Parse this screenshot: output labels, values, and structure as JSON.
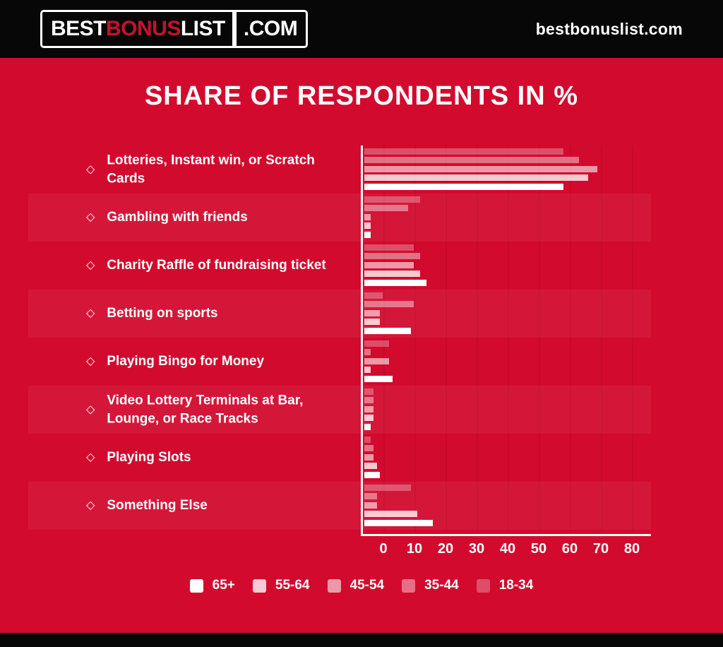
{
  "header": {
    "logo": {
      "best": "BEST",
      "bonus": "BONUS",
      "list": "LIST",
      "dotcom": ".COM"
    },
    "site": "bestbonuslist.com"
  },
  "title": "SHARE OF RESPONDENTS IN %",
  "icons": {
    "bullet": "◇"
  },
  "colors": {
    "background_red": "#d20a2e",
    "header_black": "#070707",
    "logo_red": "#c4122e",
    "text_white": "#ffffff",
    "row_band_overlay": "rgba(255,255,255,0.055)"
  },
  "chart_data": {
    "type": "bar",
    "orientation": "horizontal",
    "title": "SHARE OF RESPONDENTS IN %",
    "unit": "%",
    "categories": [
      "Lotteries, Instant win, or Scratch Cards",
      "Gambling with friends",
      "Charity Raffle of fundraising ticket",
      "Betting on sports",
      "Playing Bingo for Money",
      "Video Lottery Terminals at Bar,\nLounge, or Race Tracks",
      "Playing Slots",
      "Something Else"
    ],
    "series": [
      {
        "name": "65+",
        "color": "rgba(255,255,255,1)",
        "values": [
          64,
          2,
          20,
          15,
          9,
          2,
          5,
          22
        ]
      },
      {
        "name": "55-64",
        "color": "rgba(255,255,255,0.78)",
        "values": [
          72,
          2,
          18,
          5,
          2,
          3,
          4,
          17
        ]
      },
      {
        "name": "45-54",
        "color": "rgba(255,255,255,0.58)",
        "values": [
          75,
          2,
          16,
          5,
          8,
          3,
          3,
          4
        ]
      },
      {
        "name": "35-44",
        "color": "rgba(255,255,255,0.42)",
        "values": [
          69,
          14,
          18,
          16,
          2,
          3,
          3,
          4
        ]
      },
      {
        "name": "18-34",
        "color": "rgba(255,255,255,0.28)",
        "values": [
          64,
          18,
          16,
          6,
          8,
          3,
          2,
          15
        ]
      }
    ],
    "bar_order_top_to_bottom": [
      "18-34",
      "35-44",
      "45-54",
      "55-64",
      "65+"
    ],
    "x_ticks": [
      0,
      10,
      20,
      30,
      40,
      50,
      60,
      70,
      80
    ],
    "xlim": [
      0,
      80
    ],
    "legend_position": "bottom",
    "gridlines": "vertical-faint"
  }
}
